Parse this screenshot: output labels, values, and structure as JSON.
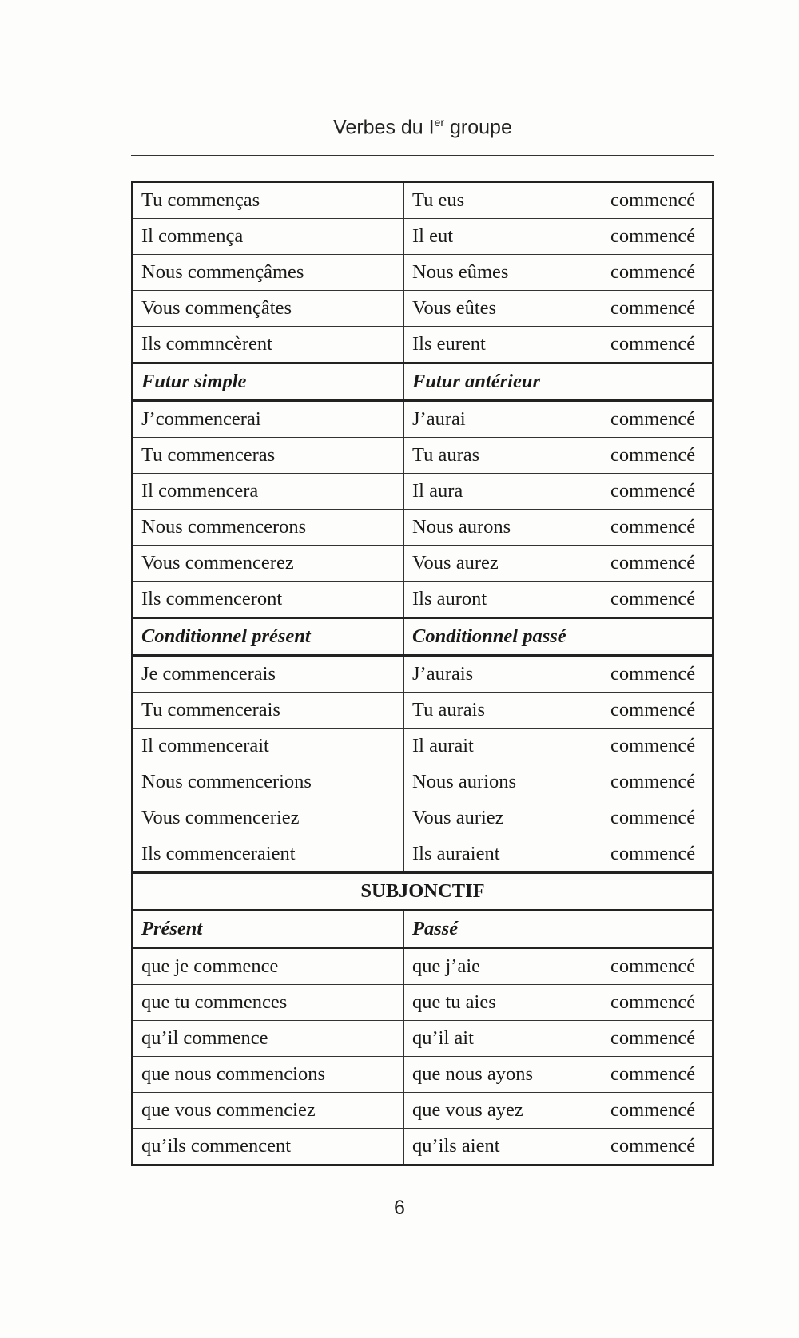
{
  "header": {
    "title_main": "Verbes du I",
    "title_sup": "er",
    "title_end": " groupe"
  },
  "sections": [
    {
      "rows": [
        [
          "Tu commenças",
          "Tu eus",
          "commencé"
        ],
        [
          "Il commença",
          "Il eut",
          "commencé"
        ],
        [
          "Nous commençâmes",
          "Nous eûmes",
          "commencé"
        ],
        [
          "Vous commençâtes",
          "Vous eûtes",
          "commencé"
        ],
        [
          "Ils commncèrent",
          "Ils eurent",
          "commencé"
        ]
      ]
    },
    {
      "left": "Futur simple",
      "right": "Futur antérieur",
      "rows": [
        [
          "J’commencerai",
          "J’aurai",
          "commencé"
        ],
        [
          "Tu commenceras",
          "Tu auras",
          "commencé"
        ],
        [
          "Il commencera",
          "Il aura",
          "commencé"
        ],
        [
          "Nous commencerons",
          "Nous aurons",
          "commencé"
        ],
        [
          "Vous commencerez",
          "Vous aurez",
          "commencé"
        ],
        [
          "Ils commenceront",
          "Ils auront",
          "commencé"
        ]
      ]
    },
    {
      "left": "Conditionnel présent",
      "right": "Conditionnel passé",
      "rows": [
        [
          "Je commencerais",
          "J’aurais",
          "commencé"
        ],
        [
          "Tu commencerais",
          "Tu aurais",
          "commencé"
        ],
        [
          "Il commencerait",
          "Il aurait",
          "commencé"
        ],
        [
          "Nous commencerions",
          "Nous aurions",
          "commencé"
        ],
        [
          "Vous commenceriez",
          "Vous auriez",
          "commencé"
        ],
        [
          "Ils commenceraient",
          "Ils auraient",
          "commencé"
        ]
      ]
    },
    {
      "mood": "SUBJONCTIF",
      "left": "Présent",
      "right": "Passé",
      "rows": [
        [
          "que je commence",
          "que j’aie",
          "commencé"
        ],
        [
          "que tu commences",
          "que tu aies",
          "commencé"
        ],
        [
          "qu’il commence",
          "qu’il ait",
          "commencé"
        ],
        [
          "que nous commencions",
          "que nous ayons",
          "commencé"
        ],
        [
          "que vous commenciez",
          "que vous ayez",
          "commencé"
        ],
        [
          "qu’ils commencent",
          "qu’ils aient",
          "commencé"
        ]
      ]
    }
  ],
  "footer": {
    "page_number": "6"
  }
}
